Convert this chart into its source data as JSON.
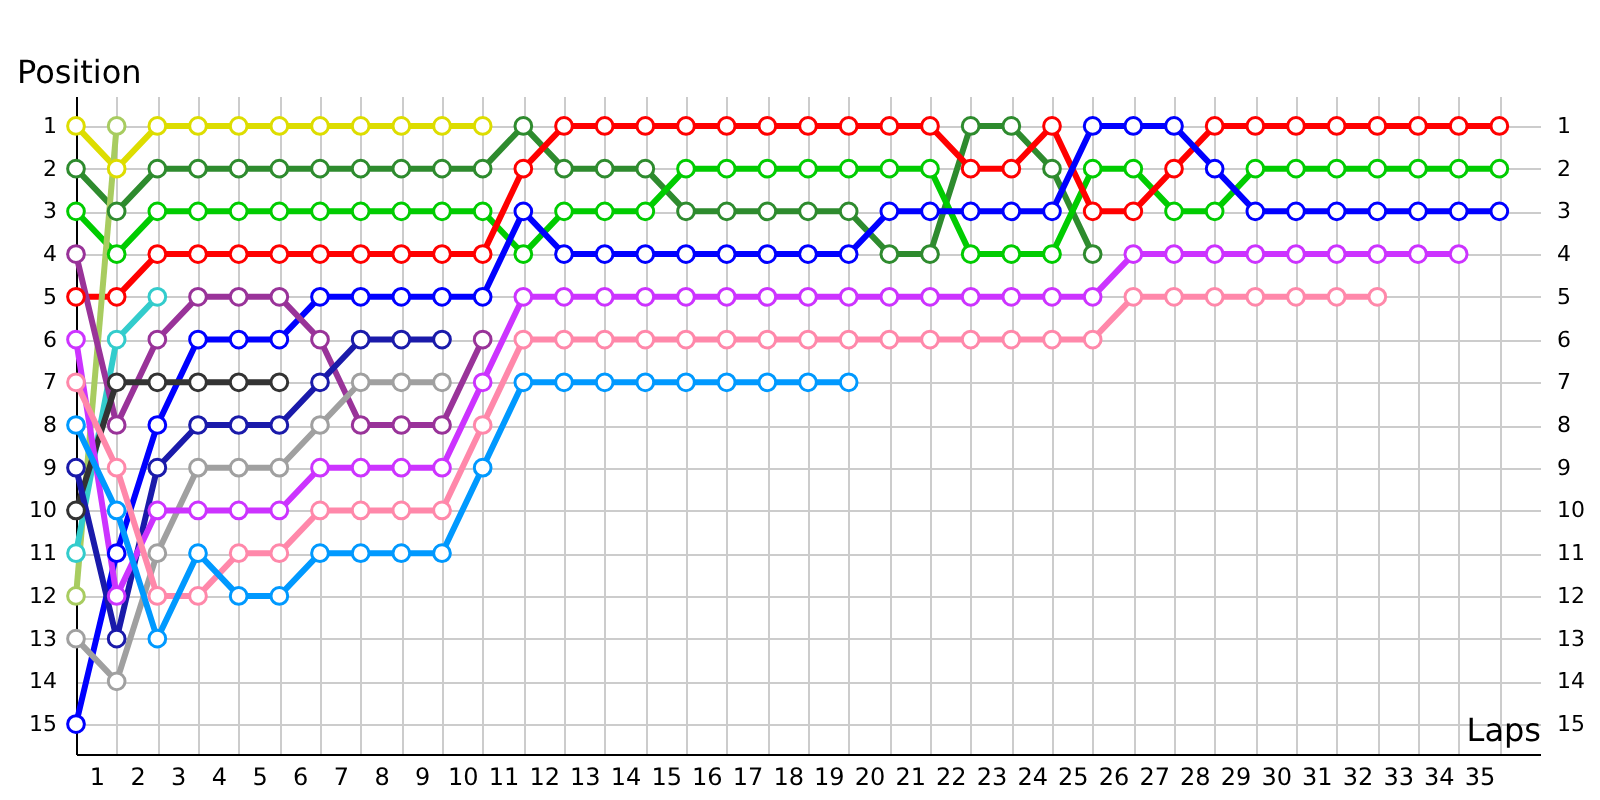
{
  "chart_data": {
    "type": "line",
    "xlabel": "Laps",
    "ylabel": "Position",
    "marker": "circle",
    "line_style": "solid",
    "grid": true,
    "legend": false,
    "x": [
      0,
      1,
      2,
      3,
      4,
      5,
      6,
      7,
      8,
      9,
      10,
      11,
      12,
      13,
      14,
      15,
      16,
      17,
      18,
      19,
      20,
      21,
      22,
      23,
      24,
      25,
      26,
      27,
      28,
      29,
      30,
      31,
      32,
      33,
      34,
      35
    ],
    "xlim": [
      0,
      36
    ],
    "xticks": [
      {
        "value": 0,
        "label": null
      },
      {
        "value": 0.5,
        "label": "1"
      },
      {
        "value": 1,
        "label": null
      },
      {
        "value": 1.5,
        "label": "2"
      },
      {
        "value": 2,
        "label": null
      },
      {
        "value": 2.5,
        "label": "3"
      },
      {
        "value": 3,
        "label": null
      },
      {
        "value": 3.5,
        "label": "4"
      },
      {
        "value": 4,
        "label": null
      },
      {
        "value": 4.5,
        "label": "5"
      },
      {
        "value": 5,
        "label": null
      },
      {
        "value": 5.5,
        "label": "6"
      },
      {
        "value": 6,
        "label": null
      },
      {
        "value": 6.5,
        "label": "7"
      },
      {
        "value": 7,
        "label": null
      },
      {
        "value": 7.5,
        "label": "8"
      },
      {
        "value": 8,
        "label": null
      },
      {
        "value": 8.5,
        "label": "9"
      },
      {
        "value": 9,
        "label": null
      },
      {
        "value": 9.5,
        "label": "10"
      },
      {
        "value": 10,
        "label": null
      },
      {
        "value": 10.5,
        "label": "11"
      },
      {
        "value": 11,
        "label": null
      },
      {
        "value": 11.5,
        "label": "12"
      },
      {
        "value": 12,
        "label": null
      },
      {
        "value": 12.5,
        "label": "13"
      },
      {
        "value": 13,
        "label": null
      },
      {
        "value": 13.5,
        "label": "14"
      },
      {
        "value": 14,
        "label": null
      },
      {
        "value": 14.5,
        "label": "15"
      },
      {
        "value": 15,
        "label": null
      },
      {
        "value": 15.5,
        "label": "16"
      },
      {
        "value": 16,
        "label": null
      },
      {
        "value": 16.5,
        "label": "17"
      },
      {
        "value": 17,
        "label": null
      },
      {
        "value": 17.5,
        "label": "18"
      },
      {
        "value": 18,
        "label": null
      },
      {
        "value": 18.5,
        "label": "19"
      },
      {
        "value": 19,
        "label": null
      },
      {
        "value": 19.5,
        "label": "20"
      },
      {
        "value": 20,
        "label": null
      },
      {
        "value": 20.5,
        "label": "21"
      },
      {
        "value": 21,
        "label": null
      },
      {
        "value": 21.5,
        "label": "22"
      },
      {
        "value": 22,
        "label": null
      },
      {
        "value": 22.5,
        "label": "23"
      },
      {
        "value": 23,
        "label": null
      },
      {
        "value": 23.5,
        "label": "24"
      },
      {
        "value": 24,
        "label": null
      },
      {
        "value": 24.5,
        "label": "25"
      },
      {
        "value": 25,
        "label": null
      },
      {
        "value": 25.5,
        "label": "26"
      },
      {
        "value": 26,
        "label": null
      },
      {
        "value": 26.5,
        "label": "27"
      },
      {
        "value": 27,
        "label": null
      },
      {
        "value": 27.5,
        "label": "28"
      },
      {
        "value": 28,
        "label": null
      },
      {
        "value": 28.5,
        "label": "29"
      },
      {
        "value": 29,
        "label": null
      },
      {
        "value": 29.5,
        "label": "30"
      },
      {
        "value": 30,
        "label": null
      },
      {
        "value": 30.5,
        "label": "31"
      },
      {
        "value": 31,
        "label": null
      },
      {
        "value": 31.5,
        "label": "32"
      },
      {
        "value": 32,
        "label": null
      },
      {
        "value": 32.5,
        "label": "33"
      },
      {
        "value": 33,
        "label": null
      },
      {
        "value": 33.5,
        "label": "34"
      },
      {
        "value": 34,
        "label": null
      },
      {
        "value": 34.5,
        "label": "35"
      },
      {
        "value": 35,
        "label": null
      }
    ],
    "ylim": [
      15.7,
      0.3
    ],
    "yticks": [
      1,
      2,
      3,
      4,
      5,
      6,
      7,
      8,
      9,
      10,
      11,
      12,
      13,
      14,
      15
    ],
    "y2lim": [
      15.7,
      0.3
    ],
    "y2ticks": [
      1,
      2,
      3,
      4,
      5,
      6,
      7,
      8,
      9,
      10,
      11,
      12,
      13,
      14,
      15
    ],
    "series": [
      {
        "color": "#dddd00",
        "values": [
          1,
          2,
          1,
          1,
          1,
          1,
          1,
          1,
          1,
          1,
          1,
          null,
          null,
          null,
          null,
          null,
          null,
          null,
          null,
          null,
          null,
          null,
          null,
          null,
          null,
          null,
          null,
          null,
          null,
          null,
          null,
          null,
          null,
          null,
          null,
          null
        ]
      },
      {
        "color": "#2e8b2e",
        "values": [
          2,
          3,
          2,
          2,
          2,
          2,
          2,
          2,
          2,
          2,
          2,
          1,
          2,
          2,
          2,
          3,
          3,
          3,
          3,
          3,
          4,
          4,
          1,
          1,
          2,
          4,
          null,
          null,
          null,
          null,
          null,
          null,
          null,
          null,
          null,
          null
        ]
      },
      {
        "color": "#00cc00",
        "values": [
          3,
          4,
          3,
          3,
          3,
          3,
          3,
          3,
          3,
          3,
          3,
          4,
          3,
          3,
          3,
          2,
          2,
          2,
          2,
          2,
          2,
          2,
          4,
          4,
          4,
          2,
          2,
          3,
          3,
          2,
          2,
          2,
          2,
          2,
          2,
          2
        ]
      },
      {
        "color": "#ff0000",
        "values": [
          5,
          5,
          4,
          4,
          4,
          4,
          4,
          4,
          4,
          4,
          4,
          2,
          1,
          1,
          1,
          1,
          1,
          1,
          1,
          1,
          1,
          1,
          2,
          2,
          1,
          3,
          3,
          2,
          1,
          1,
          1,
          1,
          1,
          1,
          1,
          1
        ]
      },
      {
        "color": "#0000ff",
        "values": [
          15,
          11,
          8,
          6,
          6,
          6,
          5,
          5,
          5,
          5,
          5,
          3,
          4,
          4,
          4,
          4,
          4,
          4,
          4,
          4,
          3,
          3,
          3,
          3,
          3,
          1,
          1,
          1,
          2,
          3,
          3,
          3,
          3,
          3,
          3,
          3
        ]
      },
      {
        "color": "#a8cc60",
        "values": [
          12,
          1,
          null,
          null,
          null,
          null,
          null,
          null,
          null,
          null,
          null,
          null,
          null,
          null,
          null,
          null,
          null,
          null,
          null,
          null,
          null,
          null,
          null,
          null,
          null,
          null,
          null,
          null,
          null,
          null,
          null,
          null,
          null,
          null,
          null,
          null
        ]
      },
      {
        "color": "#33cccc",
        "values": [
          11,
          6,
          5,
          null,
          null,
          null,
          null,
          null,
          null,
          null,
          null,
          null,
          null,
          null,
          null,
          null,
          null,
          null,
          null,
          null,
          null,
          null,
          null,
          null,
          null,
          null,
          null,
          null,
          null,
          null,
          null,
          null,
          null,
          null,
          null,
          null
        ]
      },
      {
        "color": "#993399",
        "values": [
          4,
          8,
          6,
          5,
          5,
          5,
          6,
          8,
          8,
          8,
          6,
          null,
          null,
          null,
          null,
          null,
          null,
          null,
          null,
          null,
          null,
          null,
          null,
          null,
          null,
          null,
          null,
          null,
          null,
          null,
          null,
          null,
          null,
          null,
          null,
          null
        ]
      },
      {
        "color": "#333333",
        "values": [
          10,
          7,
          7,
          7,
          7,
          7,
          null,
          null,
          null,
          null,
          null,
          null,
          null,
          null,
          null,
          null,
          null,
          null,
          null,
          null,
          null,
          null,
          null,
          null,
          null,
          null,
          null,
          null,
          null,
          null,
          null,
          null,
          null,
          null,
          null,
          null
        ]
      },
      {
        "color": "#a0a0a0",
        "values": [
          13,
          14,
          11,
          9,
          9,
          9,
          8,
          7,
          7,
          7,
          null,
          null,
          null,
          null,
          null,
          null,
          null,
          null,
          null,
          null,
          null,
          null,
          null,
          null,
          null,
          null,
          null,
          null,
          null,
          null,
          null,
          null,
          null,
          null,
          null,
          null
        ]
      },
      {
        "color": "#1a1aaa",
        "values": [
          9,
          13,
          9,
          8,
          8,
          8,
          7,
          6,
          6,
          6,
          null,
          null,
          null,
          null,
          null,
          null,
          null,
          null,
          null,
          null,
          null,
          null,
          null,
          null,
          null,
          null,
          null,
          null,
          null,
          null,
          null,
          null,
          null,
          null,
          null,
          null
        ]
      },
      {
        "color": "#cc33ff",
        "values": [
          6,
          12,
          10,
          10,
          10,
          10,
          9,
          9,
          9,
          9,
          7,
          5,
          5,
          5,
          5,
          5,
          5,
          5,
          5,
          5,
          5,
          5,
          5,
          5,
          5,
          5,
          4,
          4,
          4,
          4,
          4,
          4,
          4,
          4,
          4,
          null
        ]
      },
      {
        "color": "#ff88aa",
        "values": [
          7,
          9,
          12,
          12,
          11,
          11,
          10,
          10,
          10,
          10,
          8,
          6,
          6,
          6,
          6,
          6,
          6,
          6,
          6,
          6,
          6,
          6,
          6,
          6,
          6,
          6,
          5,
          5,
          5,
          5,
          5,
          5,
          5,
          null,
          null,
          null
        ]
      },
      {
        "color": "#0099ff",
        "values": [
          8,
          10,
          13,
          11,
          12,
          12,
          11,
          11,
          11,
          11,
          9,
          7,
          7,
          7,
          7,
          7,
          7,
          7,
          7,
          7,
          null,
          null,
          null,
          null,
          null,
          null,
          null,
          null,
          null,
          null,
          null,
          null,
          null,
          null,
          null,
          null
        ]
      }
    ]
  }
}
